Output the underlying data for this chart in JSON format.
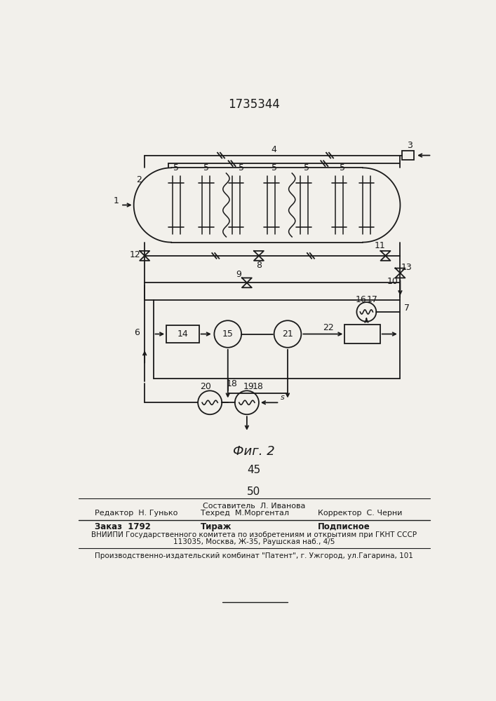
{
  "title": "1735344",
  "fig_label": "Фиг. 2",
  "page_num_top": "45",
  "page_num_bottom": "50",
  "background_color": "#f2f0eb",
  "line_color": "#1a1a1a",
  "footer_line1_center": "Составитель  Л. Иванова",
  "footer_line2_left": "Редактор  Н. Гунько",
  "footer_line2_mid": "Техред  М.Моргентал",
  "footer_line2_right": "Корректор  С. Черни",
  "footer_line3_left": "Заказ  1792",
  "footer_line3_mid": "Тираж",
  "footer_line3_right": "Подписное",
  "footer_line4": "ВНИИПИ Государственного комитета по изобретениям и открытиям при ГКНТ СССР",
  "footer_line5": "113035, Москва, Ж-35, Раушская наб., 4/5",
  "footer_line6": "Производственно-издательский комбинат \"Патент\", г. Ужгород, ул.Гагарина, 101"
}
